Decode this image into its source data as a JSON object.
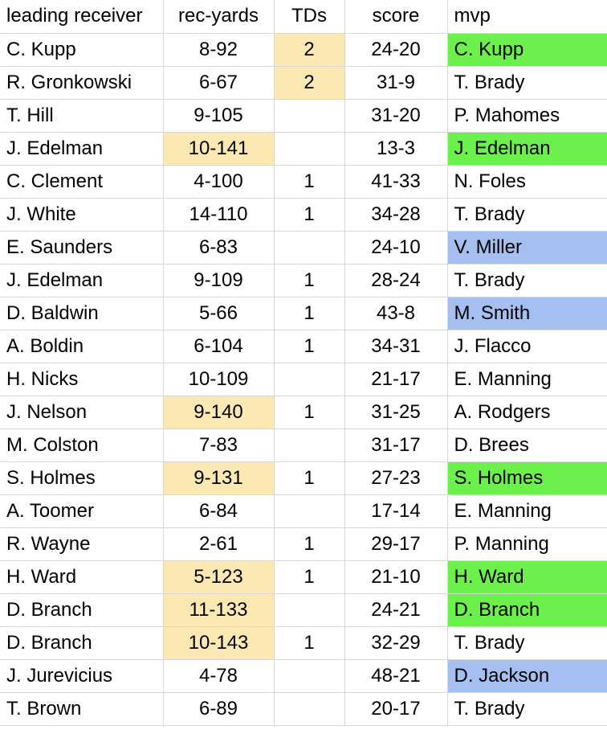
{
  "colors": {
    "yellow": "#fce8b2",
    "green": "#6cf04c",
    "blue": "#a4bff0",
    "grid": "#d9d9d9"
  },
  "headers": [
    "leading receiver",
    "rec-yards",
    "TDs",
    "score",
    "mvp"
  ],
  "rows": [
    {
      "receiver": "C. Kupp",
      "yards": "8-92",
      "tds": "2",
      "score": "24-20",
      "mvp": "C. Kupp",
      "yards_hl": "",
      "tds_hl": "yellow",
      "mvp_hl": "green"
    },
    {
      "receiver": "R. Gronkowski",
      "yards": "6-67",
      "tds": "2",
      "score": "31-9",
      "mvp": "T. Brady",
      "yards_hl": "",
      "tds_hl": "yellow",
      "mvp_hl": ""
    },
    {
      "receiver": "T. Hill",
      "yards": "9-105",
      "tds": "",
      "score": "31-20",
      "mvp": "P. Mahomes",
      "yards_hl": "",
      "tds_hl": "",
      "mvp_hl": ""
    },
    {
      "receiver": "J. Edelman",
      "yards": "10-141",
      "tds": "",
      "score": "13-3",
      "mvp": "J. Edelman",
      "yards_hl": "yellow",
      "tds_hl": "",
      "mvp_hl": "green"
    },
    {
      "receiver": "C. Clement",
      "yards": "4-100",
      "tds": "1",
      "score": "41-33",
      "mvp": "N. Foles",
      "yards_hl": "",
      "tds_hl": "",
      "mvp_hl": ""
    },
    {
      "receiver": "J. White",
      "yards": "14-110",
      "tds": "1",
      "score": "34-28",
      "mvp": "T. Brady",
      "yards_hl": "",
      "tds_hl": "",
      "mvp_hl": ""
    },
    {
      "receiver": "E. Saunders",
      "yards": "6-83",
      "tds": "",
      "score": "24-10",
      "mvp": "V. Miller",
      "yards_hl": "",
      "tds_hl": "",
      "mvp_hl": "blue"
    },
    {
      "receiver": "J. Edelman",
      "yards": "9-109",
      "tds": "1",
      "score": "28-24",
      "mvp": "T. Brady",
      "yards_hl": "",
      "tds_hl": "",
      "mvp_hl": ""
    },
    {
      "receiver": "D. Baldwin",
      "yards": "5-66",
      "tds": "1",
      "score": "43-8",
      "mvp": "M. Smith",
      "yards_hl": "",
      "tds_hl": "",
      "mvp_hl": "blue"
    },
    {
      "receiver": "A. Boldin",
      "yards": "6-104",
      "tds": "1",
      "score": "34-31",
      "mvp": "J. Flacco",
      "yards_hl": "",
      "tds_hl": "",
      "mvp_hl": ""
    },
    {
      "receiver": "H. Nicks",
      "yards": "10-109",
      "tds": "",
      "score": "21-17",
      "mvp": "E. Manning",
      "yards_hl": "",
      "tds_hl": "",
      "mvp_hl": ""
    },
    {
      "receiver": "J. Nelson",
      "yards": "9-140",
      "tds": "1",
      "score": "31-25",
      "mvp": "A. Rodgers",
      "yards_hl": "yellow",
      "tds_hl": "",
      "mvp_hl": ""
    },
    {
      "receiver": "M. Colston",
      "yards": "7-83",
      "tds": "",
      "score": "31-17",
      "mvp": "D. Brees",
      "yards_hl": "",
      "tds_hl": "",
      "mvp_hl": ""
    },
    {
      "receiver": "S. Holmes",
      "yards": "9-131",
      "tds": "1",
      "score": "27-23",
      "mvp": "S. Holmes",
      "yards_hl": "yellow",
      "tds_hl": "",
      "mvp_hl": "green"
    },
    {
      "receiver": "A. Toomer",
      "yards": "6-84",
      "tds": "",
      "score": "17-14",
      "mvp": "E. Manning",
      "yards_hl": "",
      "tds_hl": "",
      "mvp_hl": ""
    },
    {
      "receiver": "R. Wayne",
      "yards": "2-61",
      "tds": "1",
      "score": "29-17",
      "mvp": "P. Manning",
      "yards_hl": "",
      "tds_hl": "",
      "mvp_hl": ""
    },
    {
      "receiver": "H. Ward",
      "yards": "5-123",
      "tds": "1",
      "score": "21-10",
      "mvp": "H. Ward",
      "yards_hl": "yellow",
      "tds_hl": "",
      "mvp_hl": "green"
    },
    {
      "receiver": "D. Branch",
      "yards": "11-133",
      "tds": "",
      "score": "24-21",
      "mvp": "D. Branch",
      "yards_hl": "yellow",
      "tds_hl": "",
      "mvp_hl": "green"
    },
    {
      "receiver": "D. Branch",
      "yards": "10-143",
      "tds": "1",
      "score": "32-29",
      "mvp": "T. Brady",
      "yards_hl": "yellow",
      "tds_hl": "",
      "mvp_hl": ""
    },
    {
      "receiver": "J. Jurevicius",
      "yards": "4-78",
      "tds": "",
      "score": "48-21",
      "mvp": "D. Jackson",
      "yards_hl": "",
      "tds_hl": "",
      "mvp_hl": "blue"
    },
    {
      "receiver": "T. Brown",
      "yards": "6-89",
      "tds": "",
      "score": "20-17",
      "mvp": "T. Brady",
      "yards_hl": "",
      "tds_hl": "",
      "mvp_hl": ""
    }
  ]
}
